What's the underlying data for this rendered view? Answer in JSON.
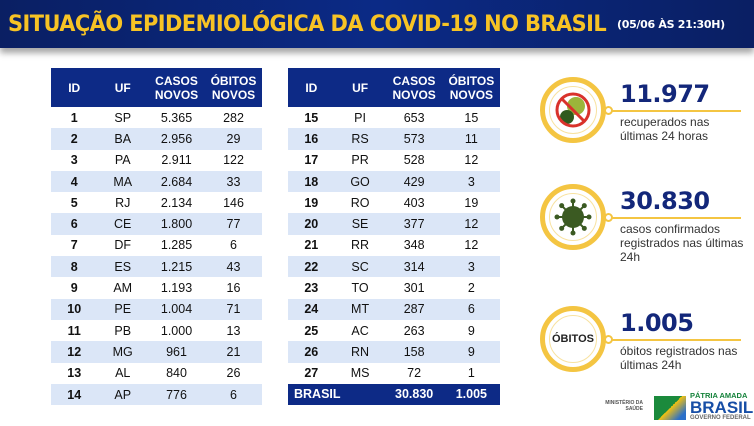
{
  "header": {
    "title": "SITUAÇÃO EPIDEMIOLÓGICA DA COVID-19 NO BRASIL",
    "date": "(05/06 ÀS 21:30H)"
  },
  "columns": {
    "id": "ID",
    "uf": "UF",
    "casos1": "CASOS",
    "casos2": "NOVOS",
    "obitos1": "ÓBITOS",
    "obitos2": "NOVOS"
  },
  "left_rows": [
    [
      "1",
      "SP",
      "5.365",
      "282"
    ],
    [
      "2",
      "BA",
      "2.956",
      "29"
    ],
    [
      "3",
      "PA",
      "2.911",
      "122"
    ],
    [
      "4",
      "MA",
      "2.684",
      "33"
    ],
    [
      "5",
      "RJ",
      "2.134",
      "146"
    ],
    [
      "6",
      "CE",
      "1.800",
      "77"
    ],
    [
      "7",
      "DF",
      "1.285",
      "6"
    ],
    [
      "8",
      "ES",
      "1.215",
      "43"
    ],
    [
      "9",
      "AM",
      "1.193",
      "16"
    ],
    [
      "10",
      "PE",
      "1.004",
      "71"
    ],
    [
      "11",
      "PB",
      "1.000",
      "13"
    ],
    [
      "12",
      "MG",
      "961",
      "21"
    ],
    [
      "13",
      "AL",
      "840",
      "26"
    ],
    [
      "14",
      "AP",
      "776",
      "6"
    ]
  ],
  "right_rows": [
    [
      "15",
      "PI",
      "653",
      "15"
    ],
    [
      "16",
      "RS",
      "573",
      "11"
    ],
    [
      "17",
      "PR",
      "528",
      "12"
    ],
    [
      "18",
      "GO",
      "429",
      "3"
    ],
    [
      "19",
      "RO",
      "403",
      "19"
    ],
    [
      "20",
      "SE",
      "377",
      "12"
    ],
    [
      "21",
      "RR",
      "348",
      "12"
    ],
    [
      "22",
      "SC",
      "314",
      "3"
    ],
    [
      "23",
      "TO",
      "301",
      "2"
    ],
    [
      "24",
      "MT",
      "287",
      "6"
    ],
    [
      "25",
      "AC",
      "263",
      "9"
    ],
    [
      "26",
      "RN",
      "158",
      "9"
    ],
    [
      "27",
      "MS",
      "72",
      "1"
    ]
  ],
  "total": {
    "label": "BRASIL",
    "casos": "30.830",
    "obitos": "1.005"
  },
  "stats": [
    {
      "value": "11.977",
      "text": "recuperados nas últimas 24 horas",
      "icon": "crossed-virus-icon"
    },
    {
      "value": "30.830",
      "text": "casos confirmados registrados nas últimas 24h",
      "icon": "virus-icon"
    },
    {
      "value": "1.005",
      "text": "óbitos registrados nas últimas 24h",
      "badge": "ÓBITOS"
    }
  ],
  "footer": {
    "ministry1": "MINISTÉRIO DA",
    "ministry2": "SAÚDE",
    "slogan1": "PÁTRIA AMADA",
    "slogan2": "BRASIL",
    "slogan3": "GOVERNO FEDERAL"
  },
  "colors": {
    "navy": "#0d2a86",
    "gold": "#f4c542",
    "stripe": "#dbe6f7"
  }
}
